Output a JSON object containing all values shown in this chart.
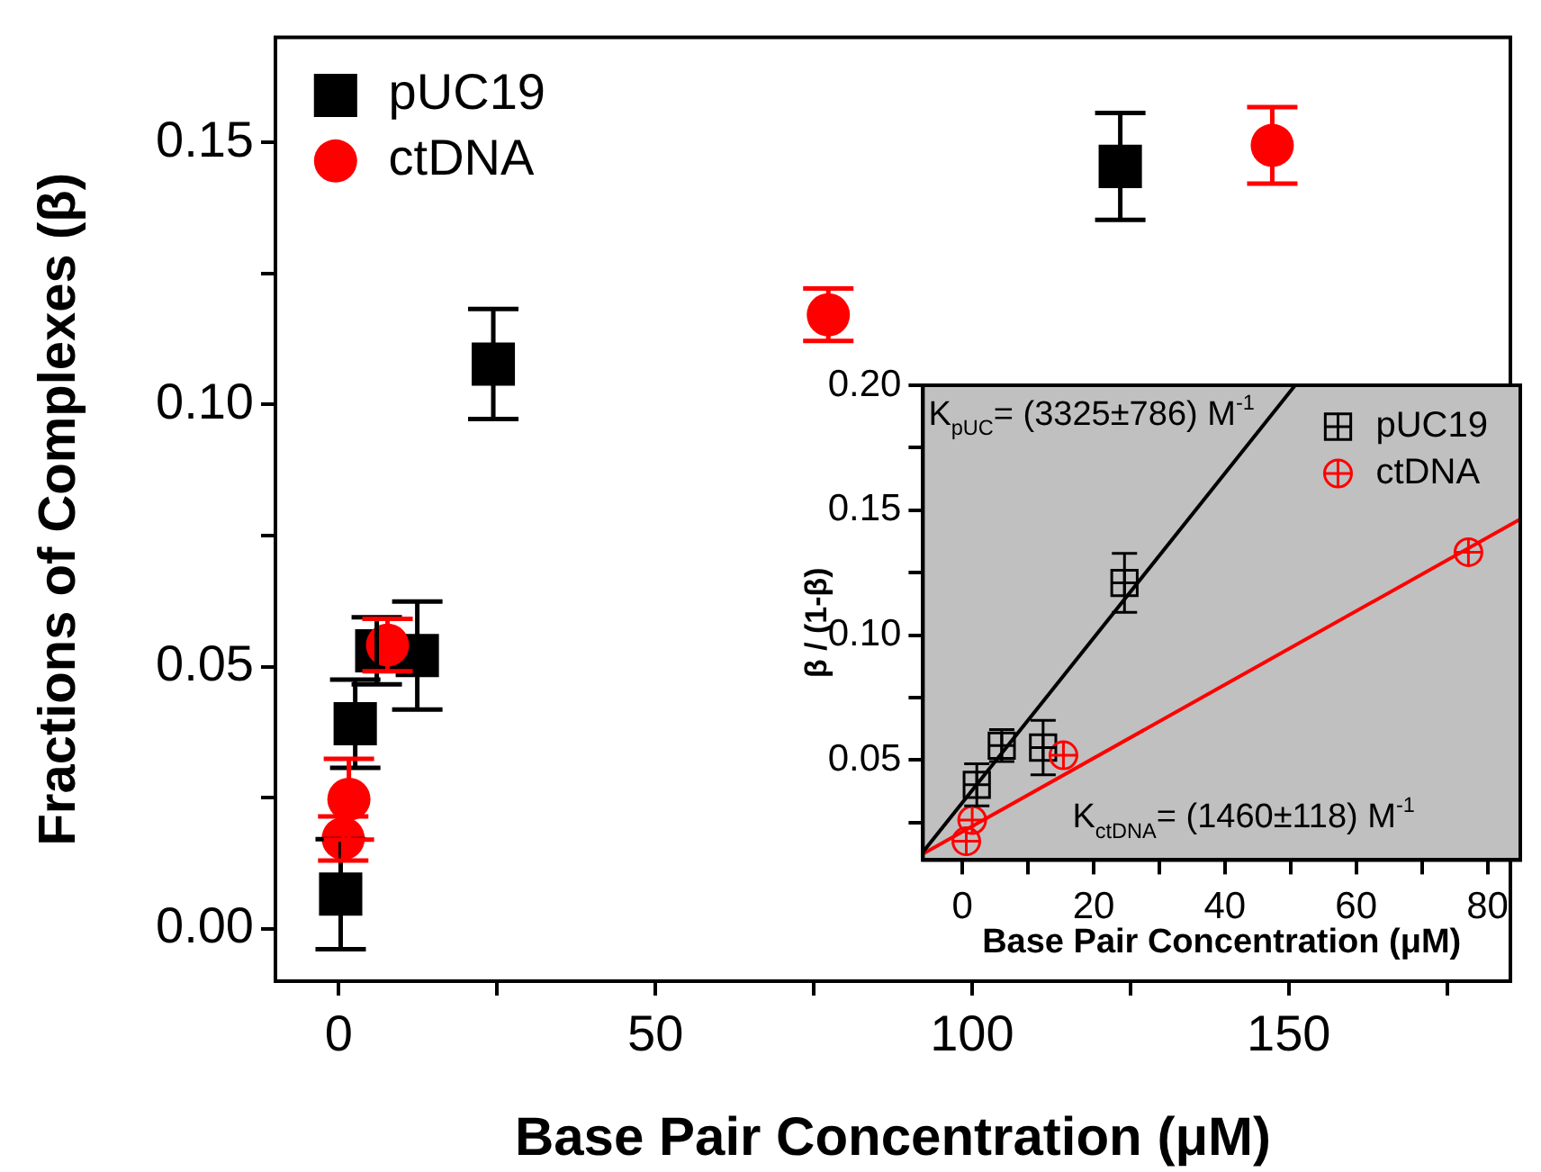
{
  "chart_data": [
    {
      "type": "scatter",
      "xlabel": "Base Pair Concentration (μM)",
      "ylabel": "Fractions of Complexes (β)",
      "xlim": [
        -10,
        185
      ],
      "ylim": [
        -0.01,
        0.17
      ],
      "xticks": [
        0,
        {
          "value": 25,
          "label": null
        },
        50,
        {
          "value": 75,
          "label": null
        },
        100,
        {
          "value": 125,
          "label": null
        },
        150,
        {
          "value": 175,
          "label": null
        }
      ],
      "yticks": [
        {
          "value": 0,
          "label": "0.00"
        },
        {
          "value": 0.025,
          "label": null
        },
        {
          "value": 0.05,
          "label": "0.05"
        },
        {
          "value": 0.075,
          "label": null
        },
        {
          "value": 0.1,
          "label": "0.10"
        },
        {
          "value": 0.125,
          "label": null
        },
        {
          "value": 0.15,
          "label": "0.15"
        }
      ],
      "legend": "top left",
      "grid": false,
      "series": [
        {
          "name": "pUC19",
          "color": "#000000",
          "marker": "square",
          "x": [
            0.3,
            2.6,
            6.0,
            12.4,
            24.4,
            123.4
          ],
          "values": [
            0.0066,
            0.0391,
            0.053,
            0.0521,
            0.1077,
            0.1454
          ],
          "errors": [
            0.0105,
            0.0084,
            0.0064,
            0.0103,
            0.0105,
            0.0102
          ]
        },
        {
          "name": "ctDNA",
          "color": "#ff0000",
          "marker": "circle",
          "x": [
            0.7,
            1.6,
            7.7,
            77.3,
            147.4
          ],
          "values": [
            0.0172,
            0.0247,
            0.0541,
            0.1171,
            0.1494
          ],
          "errors": [
            0.0042,
            0.0077,
            0.005,
            0.005,
            0.0073
          ]
        }
      ]
    },
    {
      "type": "scatter",
      "xlabel": "Base Pair Concentration (μM)",
      "ylabel": "β / (1-β)",
      "xlim": [
        -6,
        85
      ],
      "ylim": [
        0.01,
        0.2
      ],
      "xticks": [
        0,
        {
          "value": 10,
          "label": null
        },
        20,
        {
          "value": 30,
          "label": null
        },
        40,
        {
          "value": 50,
          "label": null
        },
        60,
        {
          "value": 70,
          "label": null
        },
        80
      ],
      "yticks": [
        {
          "value": 0.025,
          "label": null
        },
        {
          "value": 0.05,
          "label": "0.05"
        },
        {
          "value": 0.075,
          "label": null
        },
        {
          "value": 0.1,
          "label": "0.10"
        },
        {
          "value": 0.125,
          "label": null
        },
        {
          "value": 0.15,
          "label": "0.15"
        },
        {
          "value": 0.175,
          "label": null
        },
        {
          "value": 0.2,
          "label": "0.20"
        }
      ],
      "legend": "top right",
      "grid": false,
      "annotations": [
        "K$_{pUC}$= (3325±786) M$^{-1}$",
        "K$_{ctDNA}$= (1460±118) M$^{-1}$"
      ],
      "series": [
        {
          "type": "line",
          "color": "#000000",
          "x": [
            -6,
            50.7
          ],
          "values": [
            0.0132,
            0.2
          ]
        },
        {
          "type": "line",
          "color": "#ff0000",
          "x": [
            -6,
            85
          ],
          "values": [
            0.0125,
            0.1464
          ]
        },
        {
          "name": "pUC19",
          "color": "#000000",
          "marker": "square",
          "x": [
            2.2,
            6.0,
            12.3,
            24.7
          ],
          "values": [
            0.0401,
            0.0558,
            0.055,
            0.1209
          ],
          "errors": [
            0.0084,
            0.0064,
            0.0109,
            0.0118
          ]
        },
        {
          "name": "ctDNA",
          "color": "#ff0000",
          "marker": "circle",
          "x": [
            0.6,
            1.5,
            15.4,
            77.1
          ],
          "values": [
            0.0175,
            0.026,
            0.0519,
            0.1332
          ]
        }
      ]
    }
  ]
}
